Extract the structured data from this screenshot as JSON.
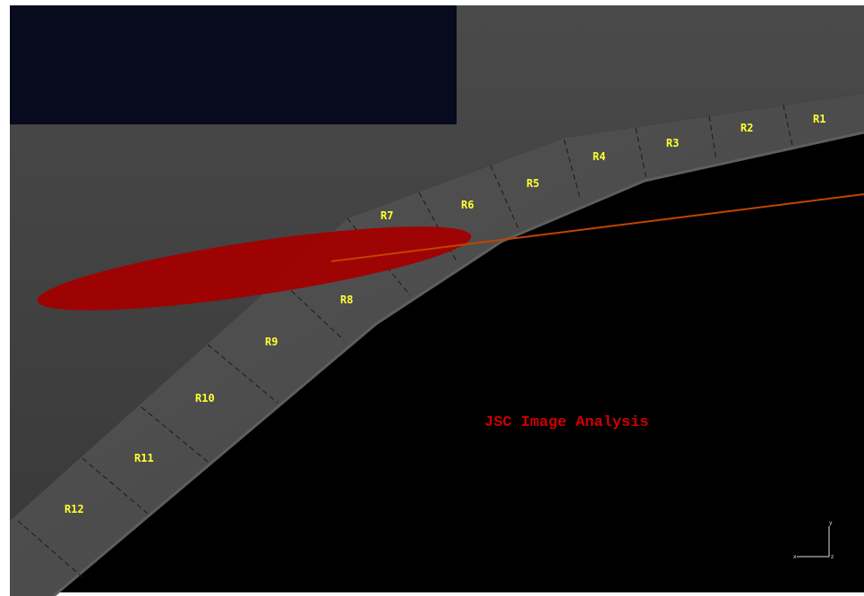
{
  "colors": {
    "frame": "#ffffff",
    "viewport_bg": "#000000",
    "upper_region": "#404040",
    "inset_panel": "#080a1e",
    "panel_surface": "#4a4a4a",
    "label_text": "#ffff33",
    "debris_ellipse": "#a30000",
    "trajectory_line": "#c24400",
    "title_text": "#cc0000",
    "triad": "#e0e0e0"
  },
  "segments": [
    "R1",
    "R2",
    "R3",
    "R4",
    "R5",
    "R6",
    "R7",
    "R8",
    "R9",
    "R10",
    "R11",
    "R12"
  ],
  "title": "JSC Image Analysis",
  "triad": {
    "x_label": "x",
    "y_label": "y",
    "z_label": "z",
    "icon": "axis-triad-icon"
  }
}
